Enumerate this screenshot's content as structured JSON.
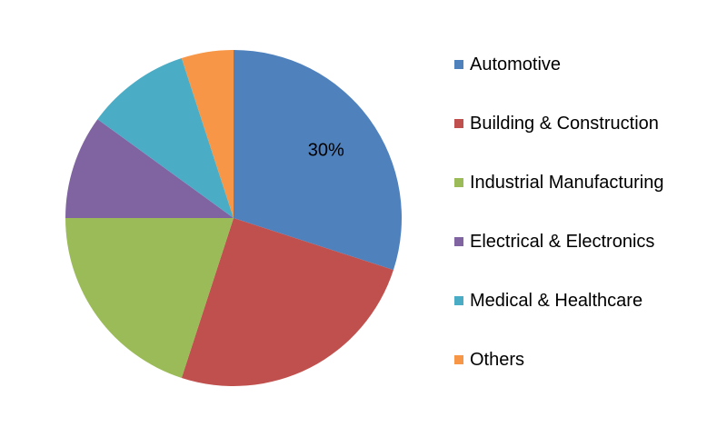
{
  "chart_data": {
    "type": "pie",
    "title": "",
    "categories": [
      "Automotive",
      "Building & Construction",
      "Industrial Manufacturing",
      "Electrical & Electronics",
      "Medical & Healthcare",
      "Others"
    ],
    "values": [
      30,
      25,
      20,
      10,
      10,
      5
    ],
    "colors": [
      "#4f81bd",
      "#c0504d",
      "#9bbb59",
      "#8064a2",
      "#4bacc6",
      "#f79646"
    ],
    "data_labels": [
      {
        "category": "Automotive",
        "text": "30%"
      }
    ],
    "legend_position": "right",
    "start_angle": "12 o'clock",
    "direction": "clockwise"
  }
}
